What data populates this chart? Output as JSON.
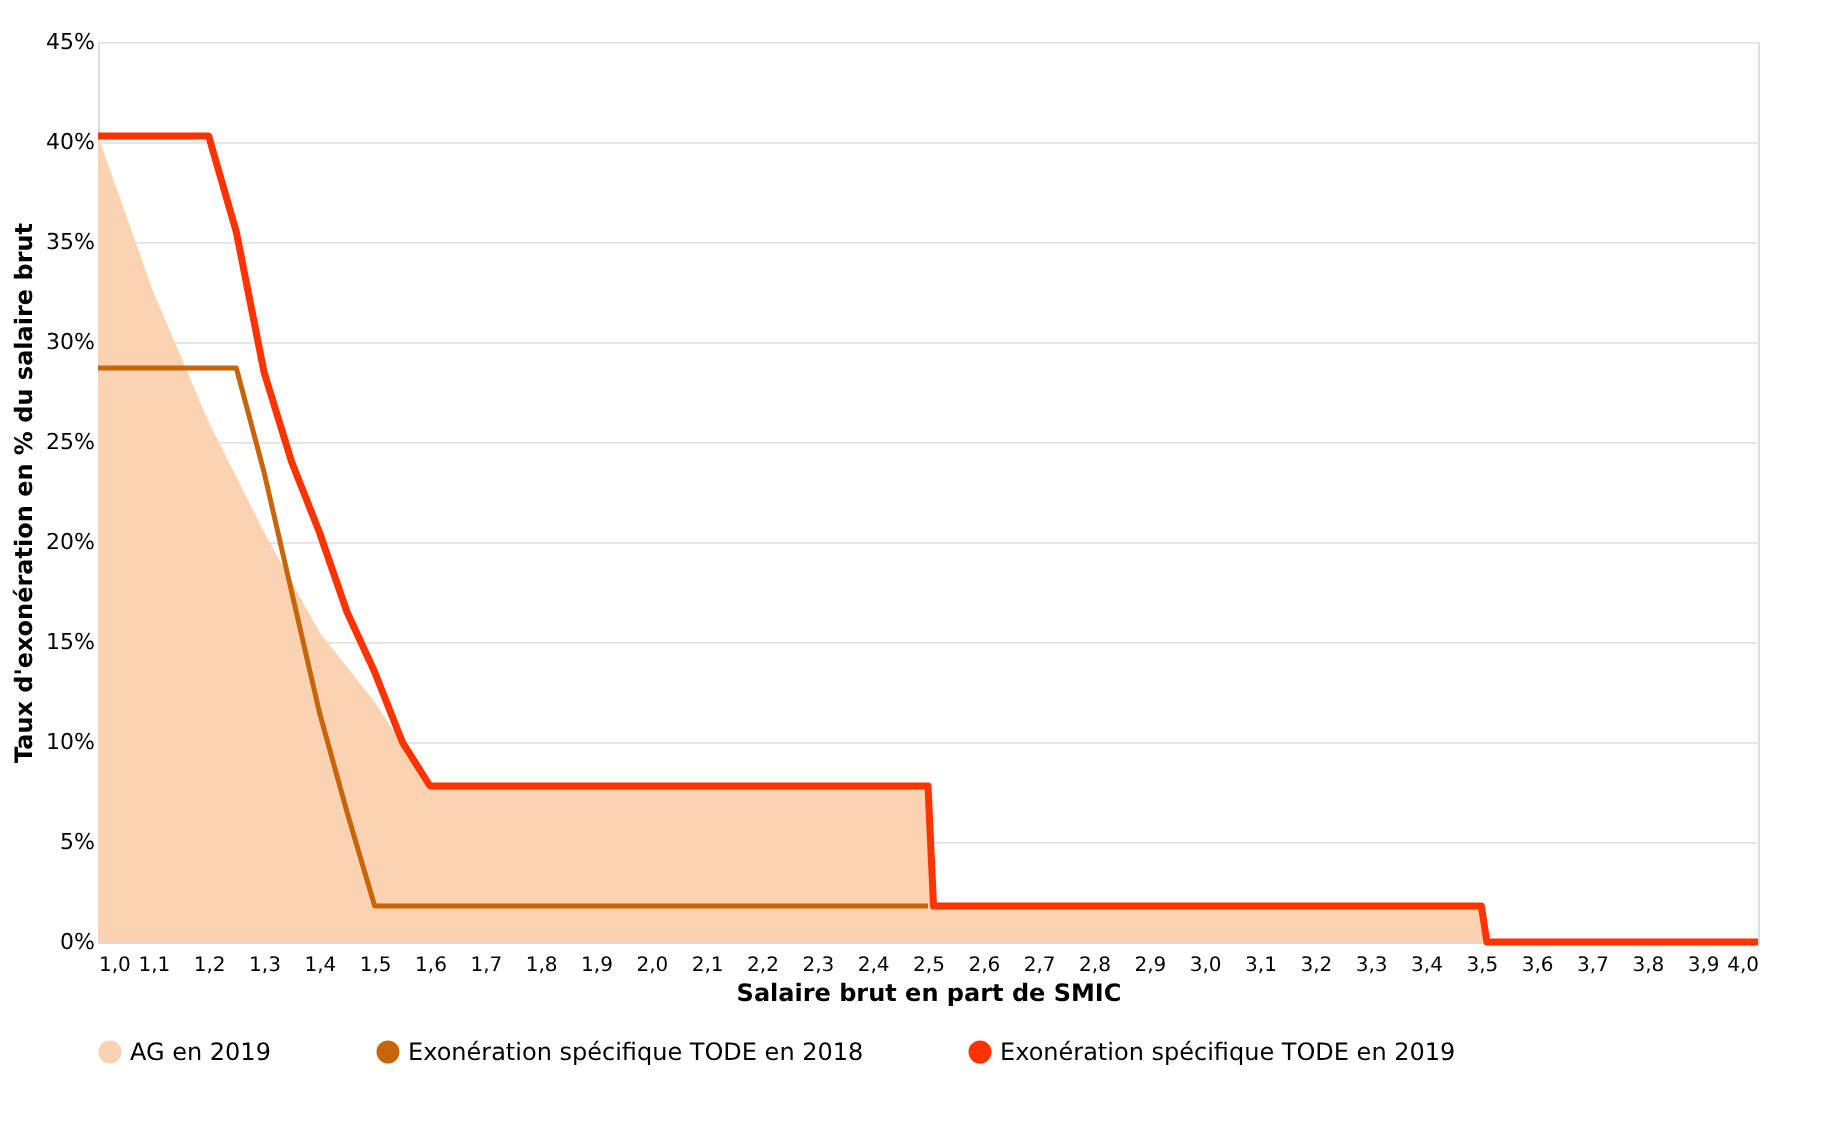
{
  "chart_data": {
    "type": "line",
    "xlabel": "Salaire brut en part de SMIC",
    "ylabel": "Taux d'exonération en % du salaire brut",
    "xlim": [
      1.0,
      4.0
    ],
    "ylim": [
      0,
      45
    ],
    "xticks": [
      {
        "value": 1.0,
        "label": "1,0"
      },
      {
        "value": 1.1,
        "label": "1,1"
      },
      {
        "value": 1.2,
        "label": "1,2"
      },
      {
        "value": 1.3,
        "label": "1,3"
      },
      {
        "value": 1.4,
        "label": "1,4"
      },
      {
        "value": 1.5,
        "label": "1,5"
      },
      {
        "value": 1.6,
        "label": "1,6"
      },
      {
        "value": 1.7,
        "label": "1,7"
      },
      {
        "value": 1.8,
        "label": "1,8"
      },
      {
        "value": 1.9,
        "label": "1,9"
      },
      {
        "value": 2.0,
        "label": "2,0"
      },
      {
        "value": 2.1,
        "label": "2,1"
      },
      {
        "value": 2.2,
        "label": "2,2"
      },
      {
        "value": 2.3,
        "label": "2,3"
      },
      {
        "value": 2.4,
        "label": "2,4"
      },
      {
        "value": 2.5,
        "label": "2,5"
      },
      {
        "value": 2.6,
        "label": "2,6"
      },
      {
        "value": 2.7,
        "label": "2,7"
      },
      {
        "value": 2.8,
        "label": "2,8"
      },
      {
        "value": 2.9,
        "label": "2,9"
      },
      {
        "value": 3.0,
        "label": "3,0"
      },
      {
        "value": 3.1,
        "label": "3,1"
      },
      {
        "value": 3.2,
        "label": "3,2"
      },
      {
        "value": 3.3,
        "label": "3,3"
      },
      {
        "value": 3.4,
        "label": "3,4"
      },
      {
        "value": 3.5,
        "label": "3,5"
      },
      {
        "value": 3.6,
        "label": "3,6"
      },
      {
        "value": 3.7,
        "label": "3,7"
      },
      {
        "value": 3.8,
        "label": "3,8"
      },
      {
        "value": 3.9,
        "label": "3,9"
      },
      {
        "value": 4.0,
        "label": "4,0"
      }
    ],
    "yticks": [
      {
        "value": 0,
        "label": "0%"
      },
      {
        "value": 5,
        "label": "5%"
      },
      {
        "value": 10,
        "label": "10%"
      },
      {
        "value": 15,
        "label": "15%"
      },
      {
        "value": 20,
        "label": "20%"
      },
      {
        "value": 25,
        "label": "25%"
      },
      {
        "value": 30,
        "label": "30%"
      },
      {
        "value": 35,
        "label": "35%"
      },
      {
        "value": 40,
        "label": "40%"
      },
      {
        "value": 45,
        "label": "45%"
      }
    ],
    "grid": "y",
    "legend": "bottom",
    "line_style": "solid",
    "marker": "none",
    "series": [
      {
        "name": "AG en 2019",
        "type": "area",
        "color": "#fbd3b2",
        "x": [
          1.0,
          1.1,
          1.2,
          1.3,
          1.4,
          1.5,
          1.6,
          2.5,
          2.51,
          3.5,
          3.51
        ],
        "values": [
          40.3,
          32.5,
          26,
          20.5,
          15.5,
          12,
          7.8,
          7.8,
          1.8,
          1.8,
          0
        ]
      },
      {
        "name": "Exonération spécifique TODE en 2018",
        "color": "#c8650a",
        "x": [
          1.0,
          1.25,
          1.3,
          1.35,
          1.4,
          1.45,
          1.5,
          2.5
        ],
        "values": [
          28.7,
          28.7,
          23.5,
          17.5,
          11.5,
          6.5,
          1.8,
          1.8
        ]
      },
      {
        "name": "Exonération spécifique TODE en 2019",
        "color": "#ff3300",
        "x": [
          1.0,
          1.2,
          1.25,
          1.3,
          1.35,
          1.4,
          1.45,
          1.5,
          1.55,
          1.6,
          2.5,
          2.51,
          3.5,
          3.51,
          4.0
        ],
        "values": [
          40.3,
          40.3,
          35.5,
          28.5,
          24,
          20.5,
          16.5,
          13.5,
          10,
          7.8,
          7.8,
          1.8,
          1.8,
          0,
          0
        ]
      }
    ]
  }
}
